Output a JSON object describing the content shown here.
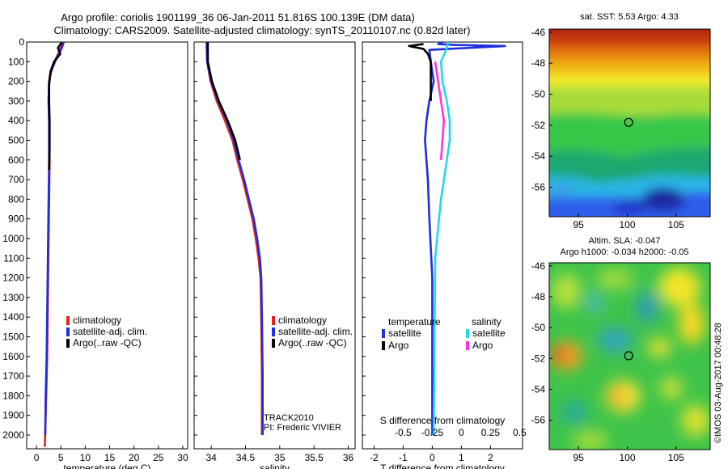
{
  "header": {
    "line1": "Argo profile: coriolis 1901199_36 06-Jan-2011 51.816S 100.139E (DM data)",
    "line2": "Climatology: CARS2009. Satellite-adjusted climatology: synTS_20110107.nc (0.82d later)"
  },
  "colors": {
    "climatology": "#e8221b",
    "satellite": "#1c2ee0",
    "argo": "#000000",
    "sal_satellite": "#22d8e6",
    "sal_argo": "#ff33dd"
  },
  "chart_data": [
    {
      "type": "line",
      "xlabel": "temperature (deg C)",
      "ylabel": "",
      "xlim": [
        -2,
        31
      ],
      "ylim": [
        2070,
        0
      ],
      "xticks": [
        0,
        5,
        10,
        15,
        20,
        25,
        30
      ],
      "yticks": [
        0,
        100,
        200,
        300,
        400,
        500,
        600,
        700,
        800,
        900,
        1000,
        1100,
        1200,
        1300,
        1400,
        1500,
        1600,
        1700,
        1800,
        1900,
        2000
      ],
      "legend": [
        "climatology",
        "satellite-adj. clim.",
        "Argo(..raw -QC)"
      ],
      "series": [
        {
          "name": "climatology",
          "color": "#e8221b",
          "x": [
            5.4,
            5.0,
            3.7,
            2.9,
            2.6,
            2.5,
            2.6,
            2.7,
            2.6,
            2.5,
            2.4,
            2.3,
            2.2,
            2.0,
            1.8,
            1.7
          ],
          "y": [
            0,
            30,
            100,
            150,
            200,
            300,
            400,
            600,
            800,
            1000,
            1200,
            1400,
            1600,
            1800,
            2000,
            2060
          ]
        },
        {
          "name": "satellite-adj. clim.",
          "color": "#1c2ee0",
          "x": [
            5.6,
            5.2,
            3.8,
            3.0,
            2.6,
            2.5,
            2.6,
            2.6,
            2.5,
            2.4,
            2.3,
            2.2,
            2.1,
            1.9,
            1.8
          ],
          "y": [
            0,
            30,
            100,
            150,
            200,
            300,
            400,
            600,
            800,
            1000,
            1200,
            1400,
            1600,
            1800,
            2000
          ]
        },
        {
          "name": "Argo(..raw -QC)",
          "color": "#000000",
          "x": [
            5.2,
            4.4,
            4.9,
            3.6,
            2.9,
            2.6,
            2.6,
            2.7,
            2.7,
            2.6
          ],
          "y": [
            0,
            30,
            60,
            100,
            150,
            220,
            300,
            400,
            550,
            650
          ]
        }
      ]
    },
    {
      "type": "line",
      "xlabel": "salinity",
      "xlim": [
        33.75,
        36.1
      ],
      "ylim": [
        2070,
        0
      ],
      "xticks": [
        34,
        34.5,
        35,
        35.5,
        36
      ],
      "legend": [
        "climatology",
        "satellite-adj. clim.",
        "Argo(..raw -QC)"
      ],
      "annotations": [
        "TRACK2010",
        "PI: Frederic VIVIER"
      ],
      "series": [
        {
          "name": "climatology",
          "color": "#e8221b",
          "x": [
            33.93,
            33.94,
            33.99,
            34.08,
            34.2,
            34.31,
            34.38,
            34.46,
            34.53,
            34.6,
            34.65,
            34.69,
            34.72,
            34.73,
            34.74,
            34.74
          ],
          "y": [
            0,
            100,
            200,
            300,
            400,
            500,
            600,
            700,
            800,
            900,
            1000,
            1100,
            1200,
            1400,
            1700,
            2000
          ]
        },
        {
          "name": "satellite-adj. clim.",
          "color": "#1c2ee0",
          "x": [
            33.94,
            33.94,
            34.0,
            34.1,
            34.23,
            34.33,
            34.4,
            34.48,
            34.55,
            34.62,
            34.67,
            34.71,
            34.73,
            34.74,
            34.75,
            34.75
          ],
          "y": [
            0,
            100,
            200,
            300,
            400,
            500,
            600,
            700,
            800,
            900,
            1000,
            1100,
            1200,
            1400,
            1700,
            2000
          ]
        },
        {
          "name": "Argo(..raw -QC)",
          "color": "#000000",
          "x": [
            33.95,
            33.95,
            34.01,
            34.11,
            34.24,
            34.35,
            34.42
          ],
          "y": [
            0,
            100,
            200,
            300,
            400,
            500,
            600
          ]
        }
      ]
    },
    {
      "type": "line",
      "xlabel": "T difference from climatology",
      "x2label": "S difference from climatology",
      "xlim": [
        -2.4,
        3.1
      ],
      "ylim": [
        2070,
        0
      ],
      "xticks": [
        -2,
        -1,
        0,
        1,
        2
      ],
      "x2ticks": [
        "-0.5",
        "-0.25",
        "0",
        "0.25",
        "0.5"
      ],
      "legend_titles": [
        "temperature",
        "salinity"
      ],
      "legend": [
        "satellite",
        "Argo",
        "satellite",
        "Argo"
      ],
      "series": [
        {
          "name": "satellite",
          "color": "#1c2ee0",
          "x": [
            0.35,
            0.2,
            0.8,
            2.5,
            -0.1,
            -0.05,
            0.05,
            -0.1,
            -0.2,
            -0.25,
            -0.2,
            -0.15,
            -0.1,
            0.0,
            0.0,
            0.0
          ],
          "y": [
            0,
            10,
            15,
            20,
            40,
            100,
            200,
            300,
            400,
            500,
            600,
            700,
            900,
            1200,
            1600,
            2000
          ]
        },
        {
          "name": "Argo",
          "color": "#000000",
          "x": [
            -0.3,
            -0.8,
            -0.3,
            -0.15,
            -0.05,
            -0.05,
            -0.05
          ],
          "y": [
            10,
            20,
            35,
            60,
            100,
            200,
            300
          ]
        },
        {
          "name": "satellite",
          "color": "#22d8e6",
          "x": [
            0.55,
            0.5,
            0.3,
            0.35,
            0.5,
            0.6,
            0.6,
            0.5,
            0.3,
            0.1,
            0.05
          ],
          "y": [
            0,
            30,
            100,
            200,
            300,
            400,
            500,
            600,
            800,
            1100,
            2000
          ]
        },
        {
          "name": "Argo",
          "color": "#ff33dd",
          "x": [
            0.1,
            0.2,
            0.3,
            0.4,
            0.35,
            0.3
          ],
          "y": [
            100,
            200,
            300,
            400,
            500,
            600
          ]
        }
      ]
    },
    {
      "type": "heatmap",
      "title": "sat. SST: 5.53 Argo: 4.33",
      "xticks": [
        95,
        100,
        105
      ],
      "yticks": [
        -46,
        -48,
        -50,
        -52,
        -54,
        -56
      ],
      "marker": {
        "lon": 100.139,
        "lat": -51.816
      }
    },
    {
      "type": "heatmap",
      "title": "Altim. SLA: -0.047",
      "subtitle": "Argo h1000: -0.034 h2000: -0.05",
      "xticks": [
        95,
        100,
        105
      ],
      "yticks": [
        -46,
        -48,
        -50,
        -52,
        -54,
        -56
      ],
      "marker": {
        "lon": 100.139,
        "lat": -51.816
      }
    }
  ],
  "footer": "©IMOS 03-Aug-2017 00:48:28"
}
